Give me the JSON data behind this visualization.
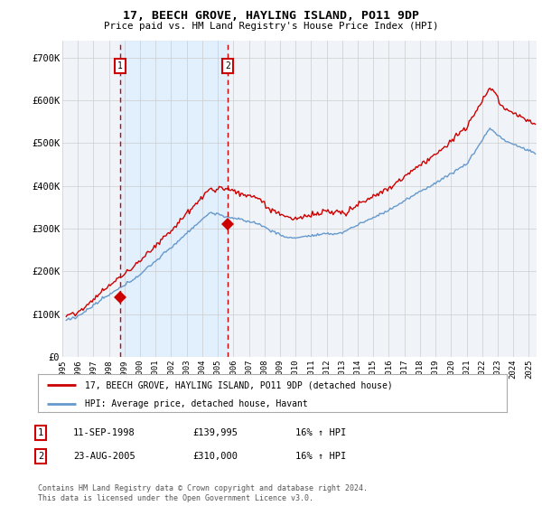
{
  "title": "17, BEECH GROVE, HAYLING ISLAND, PO11 9DP",
  "subtitle": "Price paid vs. HM Land Registry's House Price Index (HPI)",
  "ylabel_ticks": [
    "£0",
    "£100K",
    "£200K",
    "£300K",
    "£400K",
    "£500K",
    "£600K",
    "£700K"
  ],
  "ytick_values": [
    0,
    100000,
    200000,
    300000,
    400000,
    500000,
    600000,
    700000
  ],
  "ylim": [
    0,
    740000
  ],
  "xlim_start": 1995.25,
  "xlim_end": 2025.5,
  "legend_line1": "17, BEECH GROVE, HAYLING ISLAND, PO11 9DP (detached house)",
  "legend_line2": "HPI: Average price, detached house, Havant",
  "sale1_date": "11-SEP-1998",
  "sale1_price": "£139,995",
  "sale1_hpi": "16% ↑ HPI",
  "sale2_date": "23-AUG-2005",
  "sale2_price": "£310,000",
  "sale2_hpi": "16% ↑ HPI",
  "footer": "Contains HM Land Registry data © Crown copyright and database right 2024.\nThis data is licensed under the Open Government Licence v3.0.",
  "sale1_year": 1998.7,
  "sale2_year": 2005.62,
  "sale1_price_val": 139995,
  "sale2_price_val": 310000,
  "line_color_red": "#cc0000",
  "line_color_blue": "#6699cc",
  "fill_color_blue": "#ddeeff",
  "vline_color": "#cc0000",
  "grid_color": "#cccccc",
  "background_color": "#ffffff",
  "plot_bg_color": "#f0f4f8"
}
